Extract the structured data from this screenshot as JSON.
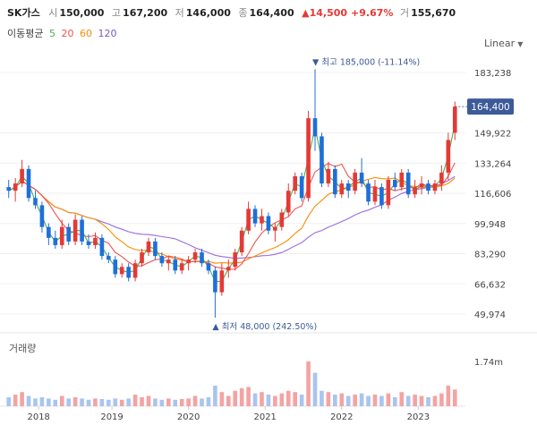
{
  "header": {
    "name": "SK가스",
    "open_label": "시",
    "open": "150,000",
    "high_label": "고",
    "high": "167,200",
    "low_label": "저",
    "low": "146,000",
    "close_label": "종",
    "close": "164,400",
    "change": "▲14,500",
    "change_pct": "+9.67%",
    "volume_label": "거",
    "volume": "155,670"
  },
  "moving_average": {
    "label": "이동평균",
    "periods": [
      {
        "value": "5",
        "color": "#4caf50"
      },
      {
        "value": "20",
        "color": "#ef5350"
      },
      {
        "value": "60",
        "color": "#fb8c00"
      },
      {
        "value": "120",
        "color": "#7e57c2"
      }
    ]
  },
  "scale": {
    "label": "Linear",
    "icon": "chevron-down-icon"
  },
  "volume_panel": {
    "label": "거래량",
    "tick": "1.74m"
  },
  "colors": {
    "up": "#e53935",
    "down": "#1e6fd9",
    "up_vol": "#f4a3a3",
    "down_vol": "#a9c4ef",
    "ma5": "#4caf50",
    "ma20": "#ef5350",
    "ma60": "#fb8c00",
    "ma120": "#9c6ade",
    "price_tag": "#3d5a99"
  },
  "chart_data": {
    "type": "candlestick",
    "price_axis_ticks": [
      "183,238",
      "149,922",
      "133,264",
      "116,606",
      "99,948",
      "83,290",
      "66,632",
      "49,974"
    ],
    "x_tick_labels": [
      "2018",
      "2019",
      "2020",
      "2021",
      "2022",
      "2023"
    ],
    "ylim": [
      45000,
      195000
    ],
    "current_price": "164,400",
    "max_annotation": "최고 185,000 (-11.14%)",
    "min_annotation": "최저 48,000 (242.50%)",
    "candles": [
      [
        120000,
        124000,
        114000,
        118000
      ],
      [
        118000,
        125000,
        112000,
        122000
      ],
      [
        122000,
        135000,
        120000,
        130000
      ],
      [
        130000,
        132000,
        112000,
        114000
      ],
      [
        114000,
        118000,
        108000,
        110000
      ],
      [
        110000,
        112000,
        95000,
        98000
      ],
      [
        98000,
        100000,
        88000,
        92000
      ],
      [
        92000,
        96000,
        86000,
        88000
      ],
      [
        88000,
        102000,
        86000,
        98000
      ],
      [
        98000,
        100000,
        88000,
        90000
      ],
      [
        90000,
        105000,
        88000,
        102000
      ],
      [
        102000,
        104000,
        88000,
        90000
      ],
      [
        90000,
        94000,
        86000,
        88000
      ],
      [
        88000,
        95000,
        86000,
        92000
      ],
      [
        92000,
        94000,
        80000,
        82000
      ],
      [
        82000,
        84000,
        78000,
        80000
      ],
      [
        80000,
        82000,
        70000,
        72000
      ],
      [
        72000,
        78000,
        70000,
        76000
      ],
      [
        76000,
        78000,
        68000,
        70000
      ],
      [
        70000,
        80000,
        68000,
        78000
      ],
      [
        78000,
        86000,
        76000,
        84000
      ],
      [
        84000,
        92000,
        82000,
        90000
      ],
      [
        90000,
        92000,
        80000,
        82000
      ],
      [
        82000,
        84000,
        76000,
        78000
      ],
      [
        78000,
        82000,
        74000,
        80000
      ],
      [
        80000,
        82000,
        72000,
        74000
      ],
      [
        74000,
        80000,
        72000,
        78000
      ],
      [
        78000,
        82000,
        74000,
        80000
      ],
      [
        80000,
        86000,
        78000,
        84000
      ],
      [
        84000,
        86000,
        76000,
        78000
      ],
      [
        78000,
        80000,
        72000,
        74000
      ],
      [
        74000,
        76000,
        48000,
        62000
      ],
      [
        62000,
        78000,
        60000,
        74000
      ],
      [
        74000,
        80000,
        70000,
        76000
      ],
      [
        76000,
        86000,
        74000,
        84000
      ],
      [
        84000,
        98000,
        82000,
        96000
      ],
      [
        96000,
        112000,
        94000,
        108000
      ],
      [
        108000,
        110000,
        98000,
        100000
      ],
      [
        100000,
        108000,
        96000,
        104000
      ],
      [
        104000,
        106000,
        94000,
        96000
      ],
      [
        96000,
        100000,
        90000,
        98000
      ],
      [
        98000,
        108000,
        96000,
        106000
      ],
      [
        106000,
        122000,
        104000,
        118000
      ],
      [
        118000,
        128000,
        116000,
        126000
      ],
      [
        126000,
        128000,
        112000,
        114000
      ],
      [
        114000,
        162000,
        112000,
        158000
      ],
      [
        158000,
        185000,
        140000,
        148000
      ],
      [
        148000,
        150000,
        120000,
        122000
      ],
      [
        122000,
        134000,
        120000,
        130000
      ],
      [
        130000,
        132000,
        114000,
        116000
      ],
      [
        116000,
        124000,
        114000,
        122000
      ],
      [
        122000,
        124000,
        114000,
        118000
      ],
      [
        118000,
        130000,
        116000,
        128000
      ],
      [
        128000,
        136000,
        120000,
        122000
      ],
      [
        122000,
        124000,
        110000,
        112000
      ],
      [
        112000,
        124000,
        110000,
        120000
      ],
      [
        120000,
        122000,
        108000,
        110000
      ],
      [
        110000,
        126000,
        108000,
        124000
      ],
      [
        124000,
        128000,
        118000,
        120000
      ],
      [
        120000,
        130000,
        118000,
        128000
      ],
      [
        128000,
        130000,
        114000,
        116000
      ],
      [
        116000,
        124000,
        114000,
        120000
      ],
      [
        120000,
        126000,
        116000,
        122000
      ],
      [
        122000,
        124000,
        116000,
        118000
      ],
      [
        118000,
        124000,
        116000,
        122000
      ],
      [
        122000,
        132000,
        118000,
        128000
      ],
      [
        128000,
        150000,
        124000,
        146000
      ],
      [
        150000,
        167200,
        146000,
        164400
      ]
    ],
    "volumes": [
      0.35,
      0.45,
      0.55,
      0.4,
      0.3,
      0.35,
      0.3,
      0.25,
      0.4,
      0.3,
      0.35,
      0.3,
      0.25,
      0.3,
      0.28,
      0.25,
      0.3,
      0.25,
      0.3,
      0.45,
      0.35,
      0.4,
      0.3,
      0.25,
      0.3,
      0.25,
      0.28,
      0.3,
      0.4,
      0.3,
      0.35,
      0.8,
      0.55,
      0.4,
      0.6,
      0.7,
      0.75,
      0.5,
      0.55,
      0.45,
      0.4,
      0.5,
      0.6,
      0.55,
      0.45,
      1.74,
      1.3,
      0.6,
      0.55,
      0.45,
      0.5,
      0.4,
      0.45,
      0.5,
      0.4,
      0.45,
      0.4,
      0.5,
      0.35,
      0.55,
      0.4,
      0.45,
      0.4,
      0.35,
      0.4,
      0.5,
      0.8,
      0.65
    ]
  }
}
